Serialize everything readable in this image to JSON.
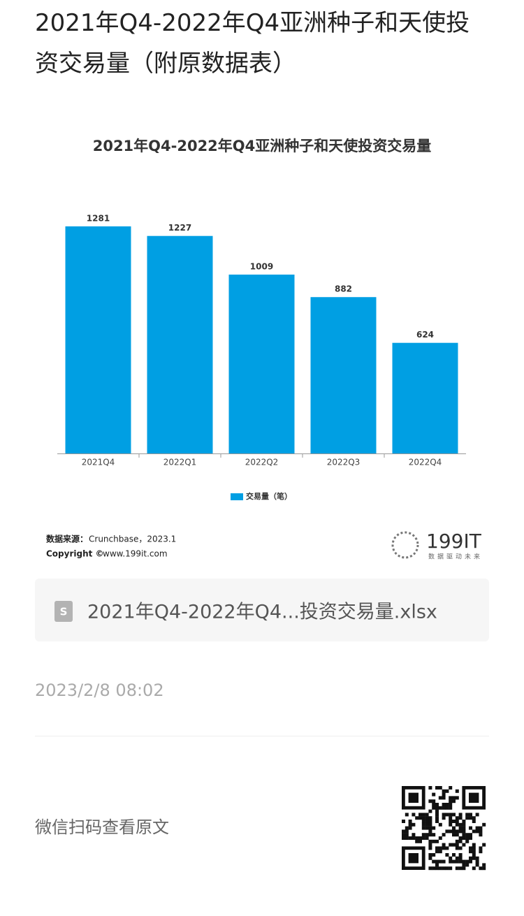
{
  "page_title": "2021年Q4-2022年Q4亚洲种子和天使投资交易量（附原数据表）",
  "chart_data": {
    "type": "bar",
    "title": "2021年Q4-2022年Q4亚洲种子和天使投资交易量",
    "categories": [
      "2021Q4",
      "2022Q1",
      "2022Q2",
      "2022Q3",
      "2022Q4"
    ],
    "series": [
      {
        "name": "交易量（笔）",
        "color": "#009fe3",
        "values": [
          1281,
          1227,
          1009,
          882,
          624
        ]
      }
    ],
    "legend": "bottom"
  },
  "source": {
    "label": "数据来源：",
    "text": "Crunchbase，2023.1"
  },
  "copyright": {
    "label": "Copyright ©",
    "text": "www.199it.com"
  },
  "logo": {
    "name": "199IT",
    "slogan": "数据驱动未来"
  },
  "attachment": {
    "icon": "S",
    "file_name": "2021年Q4-2022年Q4...投资交易量.xlsx"
  },
  "date": "2023/2/8 08:02",
  "qr_caption": "微信扫码查看原文"
}
